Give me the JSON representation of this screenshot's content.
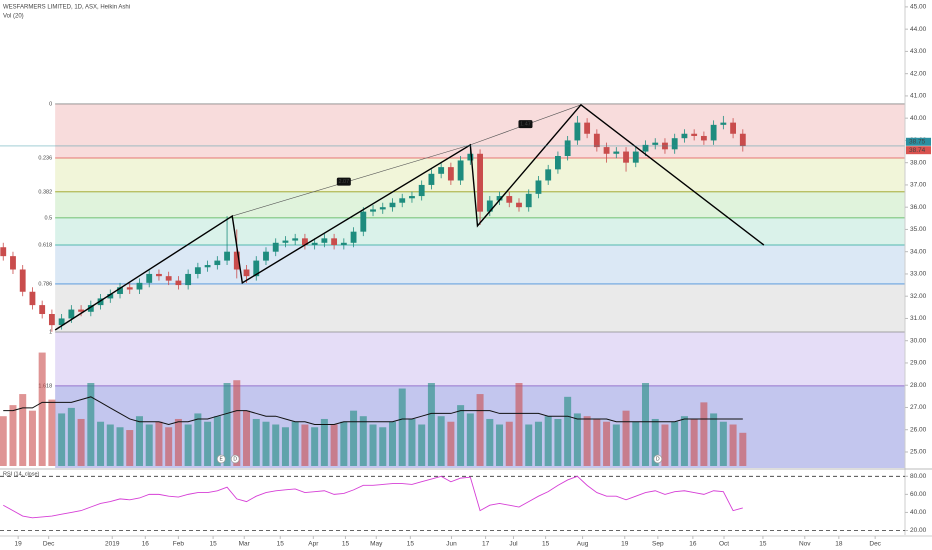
{
  "chart_data": [
    {
      "type": "candlestick",
      "title": "WESFARMERS LIMITED, 1D, ASX, Heikin Ashi",
      "x": [
        -14,
        -11,
        -8,
        -5,
        -2,
        1,
        4,
        7,
        10,
        13,
        16,
        19,
        22,
        25,
        28,
        31,
        34,
        37,
        40,
        43,
        46,
        49,
        52,
        55,
        58,
        61,
        64,
        67,
        70,
        73,
        76,
        79,
        82,
        85,
        88,
        91,
        94,
        97,
        100,
        103,
        106,
        109,
        112,
        115,
        118,
        121,
        124,
        127,
        130,
        133,
        136,
        139,
        142,
        145,
        148,
        151,
        154,
        157,
        160,
        163,
        166,
        169,
        172,
        175,
        178,
        181,
        184,
        187,
        190,
        193,
        196,
        199,
        202,
        205,
        208,
        211,
        214
      ],
      "open": [
        34.2,
        33.8,
        33.2,
        32.2,
        31.6,
        31.2,
        30.7,
        31.0,
        31.4,
        31.3,
        31.6,
        31.9,
        32.1,
        32.4,
        32.3,
        32.6,
        33.0,
        32.9,
        32.7,
        32.5,
        33.0,
        33.3,
        33.4,
        33.6,
        34.0,
        33.2,
        32.9,
        33.6,
        34.0,
        34.4,
        34.5,
        34.6,
        34.3,
        34.4,
        34.6,
        34.3,
        34.4,
        34.9,
        35.8,
        35.9,
        36.0,
        36.2,
        36.4,
        36.5,
        37.0,
        37.5,
        37.8,
        37.2,
        38.1,
        38.4,
        35.8,
        36.3,
        36.5,
        36.2,
        36.0,
        36.6,
        37.2,
        37.7,
        38.3,
        39.0,
        39.8,
        39.3,
        38.7,
        38.4,
        38.5,
        38.0,
        38.5,
        38.8,
        38.9,
        38.6,
        39.1,
        39.3,
        39.2,
        39.0,
        39.7,
        39.8,
        39.3
      ],
      "high": [
        34.4,
        34.0,
        33.4,
        32.4,
        31.8,
        31.4,
        31.2,
        31.6,
        31.6,
        31.8,
        32.1,
        32.3,
        32.6,
        32.6,
        32.8,
        33.2,
        33.2,
        33.1,
        32.9,
        33.2,
        33.5,
        33.6,
        33.8,
        35.6,
        35.0,
        33.4,
        33.8,
        34.2,
        34.6,
        34.7,
        34.8,
        34.8,
        34.6,
        34.8,
        34.8,
        34.6,
        35.1,
        36.0,
        36.1,
        36.2,
        36.4,
        36.6,
        36.7,
        37.2,
        37.7,
        38.0,
        38.0,
        38.3,
        38.7,
        38.6,
        36.5,
        36.7,
        36.7,
        36.4,
        36.8,
        37.4,
        37.9,
        38.5,
        39.2,
        40.1,
        40.0,
        39.5,
        38.9,
        38.7,
        38.7,
        38.7,
        39.0,
        39.1,
        39.1,
        39.3,
        39.5,
        39.5,
        39.4,
        39.9,
        40.1,
        40.0,
        39.5
      ],
      "low": [
        33.6,
        33.0,
        32.0,
        31.4,
        31.0,
        30.4,
        30.5,
        30.8,
        31.1,
        31.1,
        31.4,
        31.7,
        31.9,
        32.1,
        32.1,
        32.4,
        32.7,
        32.5,
        32.3,
        32.3,
        32.8,
        33.1,
        33.2,
        33.4,
        32.8,
        32.6,
        32.7,
        33.4,
        33.8,
        34.2,
        34.3,
        34.1,
        34.1,
        34.2,
        34.1,
        34.1,
        34.2,
        34.7,
        35.6,
        35.7,
        35.8,
        36.0,
        36.2,
        36.3,
        36.8,
        37.3,
        37.0,
        37.0,
        37.9,
        35.2,
        35.6,
        36.1,
        36.0,
        35.8,
        35.8,
        36.4,
        37.0,
        37.5,
        38.1,
        38.8,
        39.1,
        38.5,
        38.0,
        38.2,
        37.6,
        37.8,
        38.3,
        38.6,
        38.4,
        38.4,
        38.9,
        39.0,
        38.8,
        38.8,
        39.5,
        39.1,
        38.5
      ],
      "close": [
        33.8,
        33.2,
        32.2,
        31.6,
        31.2,
        30.7,
        31.0,
        31.4,
        31.3,
        31.6,
        31.9,
        32.1,
        32.4,
        32.3,
        32.6,
        33.0,
        32.9,
        32.7,
        32.5,
        33.0,
        33.3,
        33.4,
        33.6,
        34.0,
        33.2,
        32.9,
        33.6,
        34.0,
        34.4,
        34.5,
        34.6,
        34.3,
        34.4,
        34.6,
        34.3,
        34.4,
        34.9,
        35.8,
        35.9,
        36.0,
        36.2,
        36.4,
        36.5,
        37.0,
        37.5,
        37.8,
        37.2,
        38.1,
        38.4,
        35.8,
        36.3,
        36.5,
        36.2,
        36.0,
        36.6,
        37.2,
        37.7,
        38.3,
        39.0,
        39.8,
        39.3,
        38.7,
        38.4,
        38.5,
        38.0,
        38.5,
        38.8,
        38.9,
        38.6,
        39.1,
        39.3,
        39.2,
        39.0,
        39.7,
        39.8,
        39.3,
        38.75
      ],
      "up_color": "#1e8c7e",
      "down_color": "#c94c4c",
      "xlim": [
        -15,
        264
      ],
      "ylim": [
        24.28,
        45.31
      ],
      "yticks": [
        {
          "value": 25,
          "label": "25.00"
        },
        {
          "value": 26,
          "label": "26.00"
        },
        {
          "value": 27,
          "label": "27.00"
        },
        {
          "value": 28,
          "label": "28.00"
        },
        {
          "value": 29,
          "label": "29.00"
        },
        {
          "value": 30,
          "label": "30.00"
        },
        {
          "value": 31,
          "label": "31.00"
        },
        {
          "value": 32,
          "label": "32.00"
        },
        {
          "value": 33,
          "label": "33.00"
        },
        {
          "value": 34,
          "label": "34.00"
        },
        {
          "value": 35,
          "label": "35.00"
        },
        {
          "value": 36,
          "label": "36.00"
        },
        {
          "value": 37,
          "label": "37.00"
        },
        {
          "value": 38,
          "label": "38.00"
        },
        {
          "value": 39,
          "label": "39.00"
        },
        {
          "value": 40,
          "label": "40.00"
        },
        {
          "value": 41,
          "label": "41.00"
        },
        {
          "value": 42,
          "label": "42.00"
        },
        {
          "value": 43,
          "label": "43.00"
        },
        {
          "value": 44,
          "label": "44.00"
        },
        {
          "value": 45,
          "label": "45.00"
        }
      ],
      "xticks": [
        {
          "value": -9.4,
          "label": "19"
        },
        {
          "value": 0,
          "label": "Dec"
        },
        {
          "value": 19.6,
          "label": "2019"
        },
        {
          "value": 29.8,
          "label": "16"
        },
        {
          "value": 40,
          "label": "Feb"
        },
        {
          "value": 50.7,
          "label": "15"
        },
        {
          "value": 60.3,
          "label": "Mar"
        },
        {
          "value": 71.4,
          "label": "15"
        },
        {
          "value": 81.6,
          "label": "Apr"
        },
        {
          "value": 91.5,
          "label": "15"
        },
        {
          "value": 101,
          "label": "May"
        },
        {
          "value": 111.5,
          "label": "15"
        },
        {
          "value": 124.2,
          "label": "Jun"
        },
        {
          "value": 134.7,
          "label": "17"
        },
        {
          "value": 143.3,
          "label": "Jul"
        },
        {
          "value": 153.2,
          "label": "15"
        },
        {
          "value": 164.6,
          "label": "Aug"
        },
        {
          "value": 177.6,
          "label": "19"
        },
        {
          "value": 187.8,
          "label": "Sep"
        },
        {
          "value": 198.6,
          "label": "16"
        },
        {
          "value": 208.2,
          "label": "Oct"
        },
        {
          "value": 220.2,
          "label": "15"
        },
        {
          "value": 233.1,
          "label": "Nov"
        },
        {
          "value": 243.6,
          "label": "18"
        },
        {
          "value": 254.8,
          "label": "Dec"
        }
      ],
      "last_price": {
        "value": 38.75,
        "label": "38.75",
        "color": "#2a8fa0"
      },
      "prev_price": {
        "value": 38.74,
        "label": "38.74",
        "color": "#d9534f"
      },
      "fib": {
        "x_start": 2,
        "levels": [
          {
            "label": "0",
            "price": 40.64,
            "color": "#888888",
            "fill": "#f8dcdc"
          },
          {
            "label": "0.236",
            "price": 38.21,
            "color": "#e05050",
            "fill": "#f1f5d9"
          },
          {
            "label": "0.382",
            "price": 36.69,
            "color": "#9aa020",
            "fill": "#e0f3dc"
          },
          {
            "label": "0.5",
            "price": 35.52,
            "color": "#4caf50",
            "fill": "#daf2ea"
          },
          {
            "label": "0.618",
            "price": 34.3,
            "color": "#26a69a",
            "fill": "#dbe8f5"
          },
          {
            "label": "0.786",
            "price": 32.55,
            "color": "#4a90d9",
            "fill": "#eaeaea"
          },
          {
            "label": "1",
            "price": 30.39,
            "color": "#888888",
            "fill": "#e5ddf7"
          },
          {
            "label": "1.618",
            "price": 27.97,
            "color": "#7e57c2",
            "fill": "#c3c6ee"
          }
        ]
      },
      "drawings": {
        "zigzag": {
          "x": [
            2,
            56.6,
            59.7,
            130,
            132.2,
            164.1,
            220.5
          ],
          "y": [
            30.48,
            35.6,
            32.6,
            38.8,
            35.16,
            40.6,
            34.3
          ]
        },
        "lines": [
          {
            "x": [
              56.6,
              130
            ],
            "y": [
              35.6,
              38.8
            ]
          },
          {
            "x": [
              130,
              164.1
            ],
            "y": [
              38.8,
              40.6
            ]
          }
        ],
        "labels": [
          {
            "text": "2.07",
            "x": 91,
            "y": 37.15
          },
          {
            "text": "1.47",
            "x": 147,
            "y": 39.73
          }
        ]
      },
      "events": [
        {
          "label": "E",
          "x": 53.2
        },
        {
          "label": "D",
          "x": 57.5
        },
        {
          "label": "D",
          "x": 187.8
        }
      ]
    },
    {
      "type": "bar",
      "title": "Vol (20)",
      "values": [
        1.8,
        2.2,
        2.6,
        2.0,
        4.1,
        2.4,
        1.9,
        2.1,
        1.7,
        3.0,
        1.6,
        1.5,
        1.4,
        1.3,
        1.8,
        1.5,
        1.6,
        1.4,
        1.7,
        1.5,
        1.9,
        1.6,
        1.8,
        3.0,
        3.1,
        2.0,
        1.7,
        1.6,
        1.5,
        1.4,
        1.6,
        1.5,
        1.4,
        1.7,
        1.5,
        1.6,
        2.0,
        1.8,
        1.5,
        1.4,
        1.6,
        2.8,
        1.7,
        1.5,
        3.0,
        1.8,
        1.6,
        2.2,
        1.9,
        2.6,
        1.7,
        1.5,
        1.6,
        3.0,
        1.5,
        1.6,
        1.8,
        1.7,
        2.5,
        1.9,
        1.8,
        1.7,
        1.6,
        1.5,
        2.0,
        1.6,
        3.0,
        1.7,
        1.5,
        1.6,
        1.8,
        1.7,
        2.3,
        1.9,
        1.6,
        1.5,
        1.2
      ],
      "ma": [
        2.0,
        2.0,
        2.1,
        2.1,
        2.3,
        2.3,
        2.3,
        2.3,
        2.4,
        2.5,
        2.3,
        2.1,
        1.9,
        1.7,
        1.6,
        1.6,
        1.6,
        1.5,
        1.6,
        1.6,
        1.7,
        1.7,
        1.8,
        1.9,
        2.0,
        2.0,
        1.9,
        1.8,
        1.8,
        1.7,
        1.6,
        1.6,
        1.5,
        1.5,
        1.5,
        1.6,
        1.6,
        1.6,
        1.6,
        1.6,
        1.6,
        1.7,
        1.7,
        1.8,
        1.9,
        1.9,
        1.9,
        2.0,
        2.0,
        2.0,
        2.0,
        1.9,
        1.9,
        1.9,
        1.9,
        1.9,
        1.8,
        1.8,
        1.8,
        1.7,
        1.7,
        1.7,
        1.7,
        1.6,
        1.6,
        1.6,
        1.6,
        1.6,
        1.6,
        1.6,
        1.7,
        1.7,
        1.7,
        1.7,
        1.7,
        1.7,
        1.7
      ],
      "ma_color": "#111111",
      "ylim": [
        0,
        6
      ]
    },
    {
      "type": "line",
      "title": "RSI (14, close)",
      "color": "#d63fd6",
      "values": [
        48,
        42,
        36,
        34,
        35,
        36,
        38,
        40,
        42,
        46,
        50,
        52,
        55,
        54,
        56,
        60,
        60,
        58,
        57,
        60,
        62,
        62,
        64,
        68,
        55,
        52,
        58,
        62,
        64,
        65,
        66,
        62,
        63,
        64,
        60,
        61,
        65,
        70,
        70,
        71,
        72,
        72,
        71,
        74,
        77,
        80,
        74,
        78,
        79,
        42,
        48,
        50,
        48,
        46,
        52,
        58,
        63,
        70,
        76,
        80,
        70,
        62,
        58,
        58,
        54,
        58,
        62,
        64,
        60,
        63,
        64,
        62,
        60,
        64,
        63,
        42,
        45
      ],
      "ylim": [
        15,
        87
      ],
      "yticks": [
        {
          "value": 20,
          "label": "20.00"
        },
        {
          "value": 40,
          "label": "40.00"
        },
        {
          "value": 60,
          "label": "60.00"
        },
        {
          "value": 80,
          "label": "80.00"
        }
      ],
      "bands": [
        80,
        20
      ]
    }
  ]
}
